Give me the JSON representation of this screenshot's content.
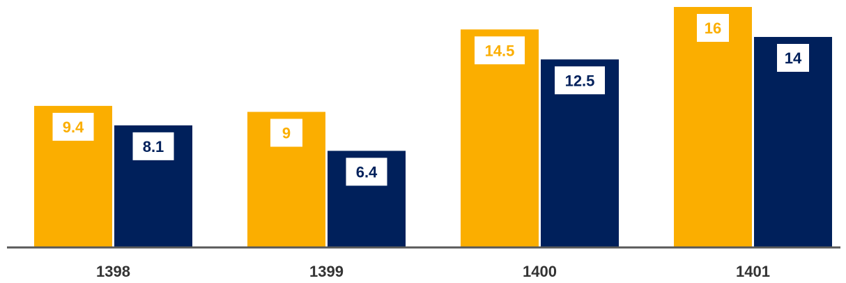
{
  "chart_data": {
    "type": "bar",
    "title": "",
    "xlabel": "",
    "ylabel": "",
    "categories": [
      "1398",
      "1399",
      "1400",
      "1401"
    ],
    "series": [
      {
        "color": "#FBAE00",
        "label_color": "#FBAE00",
        "values": [
          9.4,
          9,
          14.5,
          16
        ]
      },
      {
        "color": "#00205B",
        "label_color": "#00205B",
        "values": [
          8.1,
          6.4,
          12.5,
          14
        ]
      }
    ],
    "ylim": [
      0,
      16
    ],
    "grid": false,
    "legend": "none",
    "data_labels": true,
    "axis_color": "#595959"
  }
}
